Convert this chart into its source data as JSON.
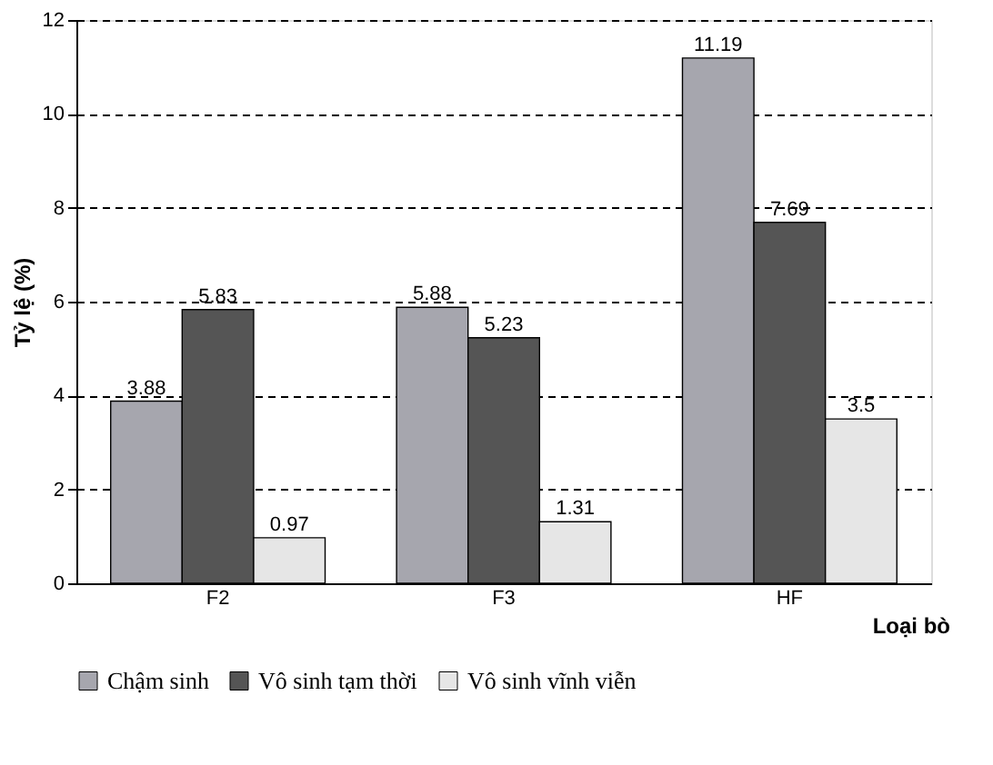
{
  "chart_data": {
    "type": "bar",
    "xlabel": "Loại bò",
    "ylabel": "Tỷ lệ (%)",
    "categories": [
      "F2",
      "F3",
      "HF"
    ],
    "series": [
      {
        "name": "Chậm sinh",
        "color": "#a6a6ae",
        "values": [
          3.88,
          5.88,
          11.19
        ]
      },
      {
        "name": "Vô sinh tạm thời",
        "color": "#555555",
        "values": [
          5.83,
          5.23,
          7.69
        ]
      },
      {
        "name": "Vô sinh vĩnh viễn",
        "color": "#e6e6e6",
        "values": [
          0.97,
          1.31,
          3.5
        ]
      }
    ],
    "ylim": [
      0,
      12
    ],
    "yticks": [
      0,
      2,
      4,
      6,
      8,
      10,
      12
    ],
    "grid": "y",
    "legend": "bottom",
    "data_labels": true
  }
}
